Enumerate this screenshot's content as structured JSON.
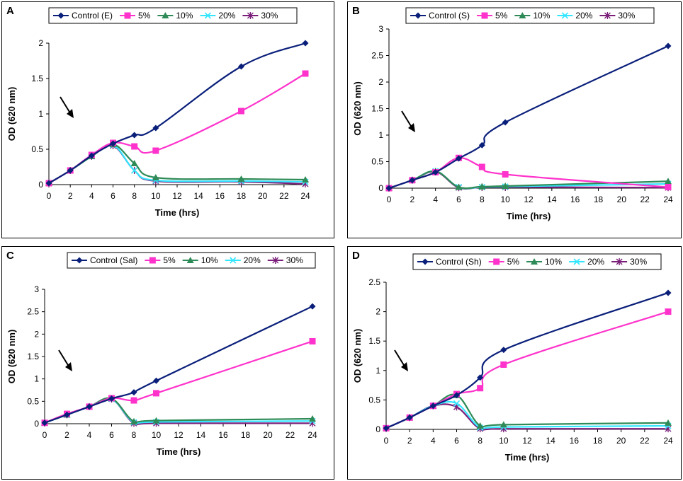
{
  "chart_data": [
    {
      "panel": "A",
      "type": "line",
      "xlabel": "Time (hrs)",
      "ylabel": "OD (620 nm)",
      "x": [
        0,
        2,
        4,
        6,
        8,
        10,
        18,
        24
      ],
      "xticks": [
        0,
        2,
        4,
        6,
        8,
        10,
        12,
        14,
        16,
        18,
        20,
        22,
        24
      ],
      "xlim": [
        0,
        24
      ],
      "ylim": [
        0,
        2
      ],
      "yticks": [
        0,
        0.5,
        1,
        1.5,
        2
      ],
      "series": [
        {
          "name": "Control (E)",
          "color": "#0a1f7a",
          "marker": "diamond",
          "values": [
            0.02,
            0.2,
            0.41,
            0.58,
            0.7,
            0.8,
            1.67,
            2.0
          ]
        },
        {
          "name": "5%",
          "color": "#ff33cc",
          "marker": "square",
          "values": [
            0.02,
            0.2,
            0.42,
            0.59,
            0.54,
            0.48,
            1.04,
            1.57
          ]
        },
        {
          "name": "10%",
          "color": "#2e8b57",
          "marker": "triangle",
          "values": [
            0.02,
            0.2,
            0.4,
            0.57,
            0.3,
            0.1,
            0.08,
            0.07
          ]
        },
        {
          "name": "20%",
          "color": "#33e6ff",
          "marker": "x",
          "values": [
            0.02,
            0.2,
            0.4,
            0.56,
            0.2,
            0.06,
            0.05,
            0.04
          ]
        },
        {
          "name": "30%",
          "color": "#7a1f7a",
          "marker": "star",
          "values": [
            0.02,
            0.2,
            0.4,
            0.55,
            0.2,
            0.05,
            0.04,
            0.01
          ]
        }
      ],
      "arrow_label": ""
    },
    {
      "panel": "B",
      "type": "line",
      "xlabel": "Time (hrs)",
      "ylabel": "OD (620 nm)",
      "x": [
        0,
        2,
        4,
        6,
        8,
        10,
        24
      ],
      "xticks": [
        0,
        2,
        4,
        6,
        8,
        10,
        12,
        14,
        16,
        18,
        20,
        22,
        24
      ],
      "xlim": [
        0,
        24
      ],
      "ylim": [
        0,
        3
      ],
      "yticks": [
        0,
        0.5,
        1,
        1.5,
        2,
        2.5,
        3
      ],
      "series": [
        {
          "name": "Control (S)",
          "color": "#0a1f7a",
          "marker": "diamond",
          "values": [
            0.0,
            0.15,
            0.3,
            0.56,
            0.81,
            1.24,
            2.68
          ]
        },
        {
          "name": "5%",
          "color": "#ff33cc",
          "marker": "square",
          "values": [
            0.0,
            0.15,
            0.3,
            0.57,
            0.4,
            0.26,
            0.02
          ]
        },
        {
          "name": "10%",
          "color": "#2e8b57",
          "marker": "triangle",
          "values": [
            0.0,
            0.15,
            0.32,
            0.02,
            0.03,
            0.04,
            0.13
          ]
        },
        {
          "name": "20%",
          "color": "#33e6ff",
          "marker": "x",
          "values": [
            0.0,
            0.15,
            0.32,
            0.02,
            0.02,
            0.03,
            0.08
          ]
        },
        {
          "name": "30%",
          "color": "#7a1f7a",
          "marker": "star",
          "values": [
            0.0,
            0.15,
            0.31,
            0.01,
            0.02,
            0.02,
            0.01
          ]
        }
      ],
      "arrow_label": ""
    },
    {
      "panel": "C",
      "type": "line",
      "xlabel": "Time (hrs)",
      "ylabel": "OD (620 nm)",
      "x": [
        0,
        2,
        4,
        6,
        8,
        10,
        24
      ],
      "xticks": [
        0,
        2,
        4,
        6,
        8,
        10,
        12,
        14,
        16,
        18,
        20,
        22,
        24
      ],
      "xlim": [
        0,
        24
      ],
      "ylim": [
        0,
        3
      ],
      "yticks": [
        0,
        0.5,
        1,
        1.5,
        2,
        2.5,
        3
      ],
      "series": [
        {
          "name": "Control (Sal)",
          "color": "#0a1f7a",
          "marker": "diamond",
          "values": [
            0.02,
            0.2,
            0.38,
            0.56,
            0.7,
            0.96,
            2.62
          ]
        },
        {
          "name": "5%",
          "color": "#ff33cc",
          "marker": "square",
          "values": [
            0.02,
            0.22,
            0.38,
            0.57,
            0.52,
            0.68,
            1.84
          ]
        },
        {
          "name": "10%",
          "color": "#2e8b57",
          "marker": "triangle",
          "values": [
            0.02,
            0.2,
            0.38,
            0.56,
            0.05,
            0.07,
            0.11
          ]
        },
        {
          "name": "20%",
          "color": "#33e6ff",
          "marker": "x",
          "values": [
            0.02,
            0.2,
            0.38,
            0.55,
            0.03,
            0.04,
            0.06
          ]
        },
        {
          "name": "30%",
          "color": "#7a1f7a",
          "marker": "star",
          "values": [
            0.02,
            0.2,
            0.38,
            0.55,
            0.01,
            0.01,
            0.01
          ]
        }
      ],
      "arrow_label": ""
    },
    {
      "panel": "D",
      "type": "line",
      "xlabel": "Time (hrs)",
      "ylabel": "OD (620 nm)",
      "x": [
        0,
        2,
        4,
        6,
        8,
        10,
        24
      ],
      "xticks": [
        0,
        2,
        4,
        6,
        8,
        10,
        12,
        14,
        16,
        18,
        20,
        22,
        24
      ],
      "xlim": [
        0,
        24
      ],
      "ylim": [
        0,
        2.5
      ],
      "yticks": [
        0,
        0.5,
        1,
        1.5,
        2,
        2.5
      ],
      "series": [
        {
          "name": "Control (Sh)",
          "color": "#0a1f7a",
          "marker": "diamond",
          "values": [
            0.02,
            0.2,
            0.4,
            0.58,
            0.88,
            1.35,
            2.32
          ]
        },
        {
          "name": "5%",
          "color": "#ff33cc",
          "marker": "square",
          "values": [
            0.02,
            0.2,
            0.4,
            0.6,
            0.7,
            1.1,
            2.0
          ]
        },
        {
          "name": "10%",
          "color": "#2e8b57",
          "marker": "triangle",
          "values": [
            0.02,
            0.2,
            0.4,
            0.58,
            0.06,
            0.08,
            0.11
          ]
        },
        {
          "name": "20%",
          "color": "#33e6ff",
          "marker": "x",
          "values": [
            0.02,
            0.2,
            0.4,
            0.44,
            0.03,
            0.04,
            0.06
          ]
        },
        {
          "name": "30%",
          "color": "#7a1f7a",
          "marker": "star",
          "values": [
            0.02,
            0.2,
            0.4,
            0.38,
            0.01,
            0.01,
            0.01
          ]
        }
      ],
      "arrow_label": ""
    }
  ]
}
